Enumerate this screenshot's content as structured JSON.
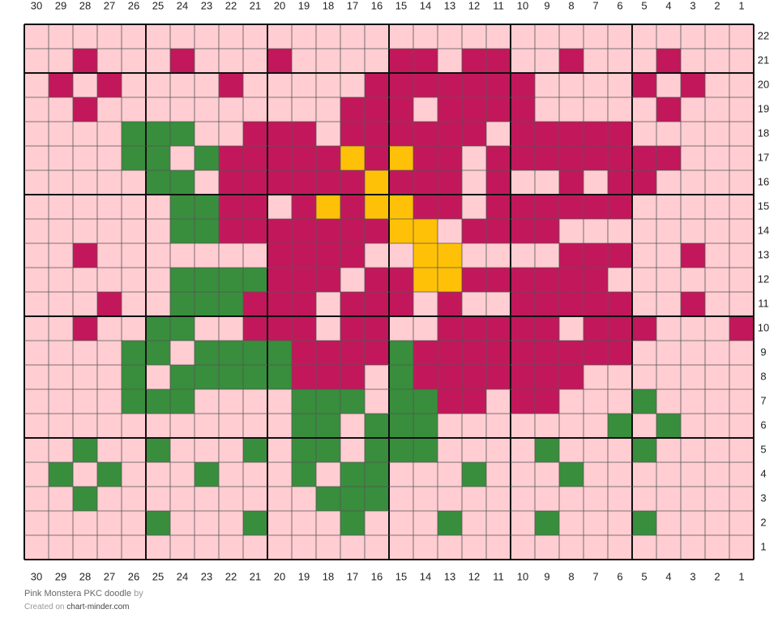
{
  "grid": {
    "column_labels": [
      30,
      29,
      28,
      27,
      26,
      25,
      24,
      23,
      22,
      21,
      20,
      19,
      18,
      17,
      16,
      15,
      14,
      13,
      12,
      11,
      10,
      9,
      8,
      7,
      6,
      5,
      4,
      3,
      2,
      1
    ],
    "row_labels": [
      22,
      21,
      20,
      19,
      18,
      17,
      16,
      15,
      14,
      13,
      12,
      11,
      10,
      9,
      8,
      7,
      6,
      5,
      4,
      3,
      2,
      1
    ],
    "colors": {
      ".": "#ffcdd2",
      "M": "#c2185b",
      "G": "#388e3c",
      "Y": "#ffc107"
    },
    "rows": [
      "..............................",
      "..M...M...M....MM.MM..M...M...",
      ".M.M....M.....MMMMMMM....M.M..",
      "..M..........MMM.MMMM.....M...",
      "....GGG..MMM.MMMMMM.MMMMM.....",
      "....GG.GMMMMMYMYMM.MMMMMMMM...",
      ".....GG.MMMMMMYMMM.M..M.MM....",
      "......GGMM.MYMYYMM.MMMMMM.....",
      "......GGMMMMMMMYY.MMMM........",
      "..M.......MMMM..YY....MMM..M..",
      "......GGGGMMM.MMYYMMMMMM......",
      "...M..GGGMMM.MMM.M..MMMMM..M..",
      "..M..GG..MMM.MM..MMMMM.MMM...M",
      "....GG.GGGGMMMMGMMMMMMMMM.....",
      "....G.GGGGGMMM.GMMMMMMM.......",
      "....GGG....GGG.GGMM.MM...G....",
      "...........GG.GGG.......G.G...",
      "..G..G...G.GG.GGG....G...G....",
      ".G.G...G...G.GG...G...G.......",
      "..G.........GGG...............",
      ".....G...G...G...G...G...G....",
      ".............................."
    ]
  },
  "footer": {
    "title": "Pink Monstera PKC doodle",
    "by": "by",
    "created_on": "Created on",
    "site": "chart-minder.com"
  }
}
